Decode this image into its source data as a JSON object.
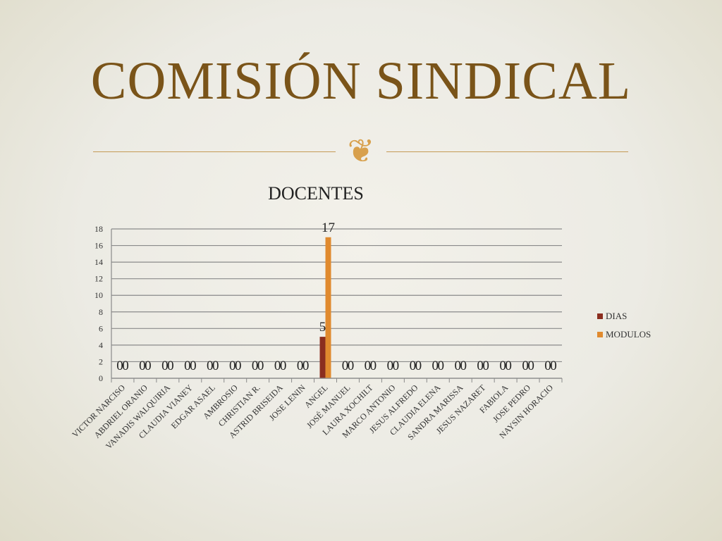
{
  "slide": {
    "title": "COMISIÓN SINDICAL",
    "ornament_icon": "flourish-ornament-icon"
  },
  "chart_data": {
    "type": "bar",
    "title": "DOCENTES",
    "categories": [
      "VICTOR NARCISO",
      "ABDRIEL ORANIO",
      "VANADIS WALQUIRIA",
      "CLAUDIA VIANEY",
      "EDGAR ASAEL",
      "AMBROSIO",
      "CHRISTIAN R.",
      "ASTRID BRISEIDA",
      "JOSE LENIN",
      "ANGEL",
      "JOSÉ MANUEL",
      "LAURA XOCHILT",
      "MARCO ANTONIO",
      "JESUS ALFREDO",
      "CLAUDIA ELENA",
      "SANDRA MARISSA",
      "JESUS NAZARET",
      "FABIOLA",
      "JOSE PEDRO",
      "NAYSIN HORACIO"
    ],
    "series": [
      {
        "name": "DIAS",
        "color": "#8b2e1f",
        "values": [
          0,
          0,
          0,
          0,
          0,
          0,
          0,
          0,
          0,
          5,
          0,
          0,
          0,
          0,
          0,
          0,
          0,
          0,
          0,
          0
        ]
      },
      {
        "name": "MODULOS",
        "color": "#e08a2e",
        "values": [
          0,
          0,
          0,
          0,
          0,
          0,
          0,
          0,
          0,
          17,
          0,
          0,
          0,
          0,
          0,
          0,
          0,
          0,
          0,
          0
        ]
      }
    ],
    "ylim": [
      0,
      18
    ],
    "yticks": [
      0,
      2,
      4,
      6,
      8,
      10,
      12,
      14,
      16,
      18
    ],
    "grid": true,
    "legend_position": "right",
    "data_labels": true
  }
}
